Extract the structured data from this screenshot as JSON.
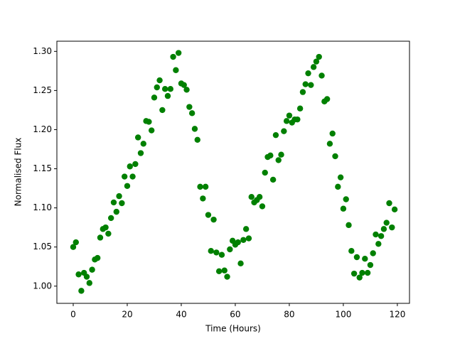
{
  "chart_data": {
    "type": "scatter",
    "x_label": "Time (Hours)",
    "y_label": "Normalised Flux",
    "color": "#008000",
    "x": [
      0,
      1,
      2,
      3,
      4,
      5,
      6,
      7,
      8,
      9,
      10,
      11,
      12,
      13,
      14,
      15,
      16,
      17,
      18,
      19,
      20,
      21,
      22,
      23,
      24,
      25,
      26,
      27,
      28,
      29,
      30,
      31,
      32,
      33,
      34,
      35,
      36,
      37,
      38,
      39,
      40,
      41,
      42,
      43,
      44,
      45,
      46,
      47,
      48,
      49,
      50,
      51,
      52,
      53,
      54,
      55,
      56,
      57,
      58,
      59,
      60,
      61,
      62,
      63,
      64,
      65,
      66,
      67,
      68,
      69,
      70,
      71,
      72,
      73,
      74,
      75,
      76,
      77,
      78,
      79,
      80,
      81,
      82,
      83,
      84,
      85,
      86,
      87,
      88,
      89,
      90,
      91,
      92,
      93,
      94,
      95,
      96,
      97,
      98,
      99,
      100,
      101,
      102,
      103,
      104,
      105,
      106,
      107,
      108,
      109,
      110,
      111,
      112,
      113,
      114,
      115,
      116,
      117,
      118,
      119
    ],
    "values": [
      1.05,
      1.056,
      1.015,
      0.994,
      1.017,
      1.012,
      1.004,
      1.021,
      1.034,
      1.036,
      1.062,
      1.073,
      1.075,
      1.067,
      1.087,
      1.107,
      1.095,
      1.115,
      1.106,
      1.14,
      1.128,
      1.153,
      1.14,
      1.156,
      1.19,
      1.17,
      1.182,
      1.211,
      1.21,
      1.199,
      1.241,
      1.254,
      1.263,
      1.225,
      1.252,
      1.243,
      1.252,
      1.293,
      1.276,
      1.298,
      1.259,
      1.257,
      1.251,
      1.229,
      1.221,
      1.201,
      1.187,
      1.127,
      1.112,
      1.127,
      1.091,
      1.045,
      1.085,
      1.043,
      1.019,
      1.04,
      1.02,
      1.012,
      1.047,
      1.058,
      1.053,
      1.056,
      1.029,
      1.059,
      1.073,
      1.061,
      1.114,
      1.107,
      1.11,
      1.114,
      1.102,
      1.145,
      1.165,
      1.167,
      1.136,
      1.193,
      1.161,
      1.168,
      1.198,
      1.211,
      1.218,
      1.209,
      1.213,
      1.213,
      1.227,
      1.248,
      1.258,
      1.272,
      1.257,
      1.28,
      1.287,
      1.293,
      1.269,
      1.236,
      1.239,
      1.182,
      1.195,
      1.166,
      1.127,
      1.139,
      1.099,
      1.111,
      1.078,
      1.045,
      1.016,
      1.037,
      1.011,
      1.017,
      1.035,
      1.017,
      1.027,
      1.042,
      1.066,
      1.054,
      1.064,
      1.073,
      1.081,
      1.106,
      1.075,
      1.098
    ],
    "xlim": [
      -6.05,
      124.5
    ],
    "ylim": [
      0.978,
      1.313
    ],
    "xticks": [
      0,
      20,
      40,
      60,
      80,
      100,
      120
    ],
    "yticks": [
      {
        "value": 1.0,
        "label": "1.00"
      },
      {
        "value": 1.05,
        "label": "1.05"
      },
      {
        "value": 1.1,
        "label": "1.10"
      },
      {
        "value": 1.15,
        "label": "1.15"
      },
      {
        "value": 1.2,
        "label": "1.20"
      },
      {
        "value": 1.25,
        "label": "1.25"
      },
      {
        "value": 1.3,
        "label": "1.30"
      }
    ],
    "grid": false
  }
}
